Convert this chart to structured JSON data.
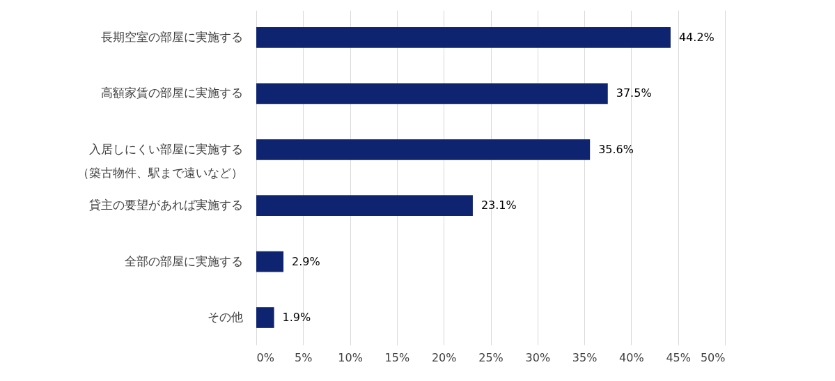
{
  "chart_data": {
    "type": "bar",
    "orientation": "horizontal",
    "categories": [
      "長期空室の部屋に実施する",
      "高額家賃の部屋に実施する",
      "入居しにくい部屋に実施する（築古物件、駅まで遠いなど）",
      "貸主の要望があれば実施する",
      "全部の部屋に実施する",
      "その他"
    ],
    "values": [
      44.2,
      37.5,
      35.6,
      23.1,
      2.9,
      1.9
    ],
    "value_labels": [
      "44.2%",
      "37.5%",
      "35.6%",
      "23.1%",
      "2.9%",
      "1.9%"
    ],
    "color": "#0e2471",
    "xlim": [
      0,
      50
    ],
    "xticks": [
      {
        "value": 0,
        "label": "0%"
      },
      {
        "value": 5,
        "label": "5%"
      },
      {
        "value": 10,
        "label": "10%"
      },
      {
        "value": 15,
        "label": "15%"
      },
      {
        "value": 20,
        "label": "20%"
      },
      {
        "value": 25,
        "label": "25%"
      },
      {
        "value": 30,
        "label": "30%"
      },
      {
        "value": 35,
        "label": "35%"
      },
      {
        "value": 40,
        "label": "40%"
      },
      {
        "value": 45,
        "label": "45%"
      },
      {
        "value": 50,
        "label": "50%"
      }
    ],
    "grid": "x"
  }
}
